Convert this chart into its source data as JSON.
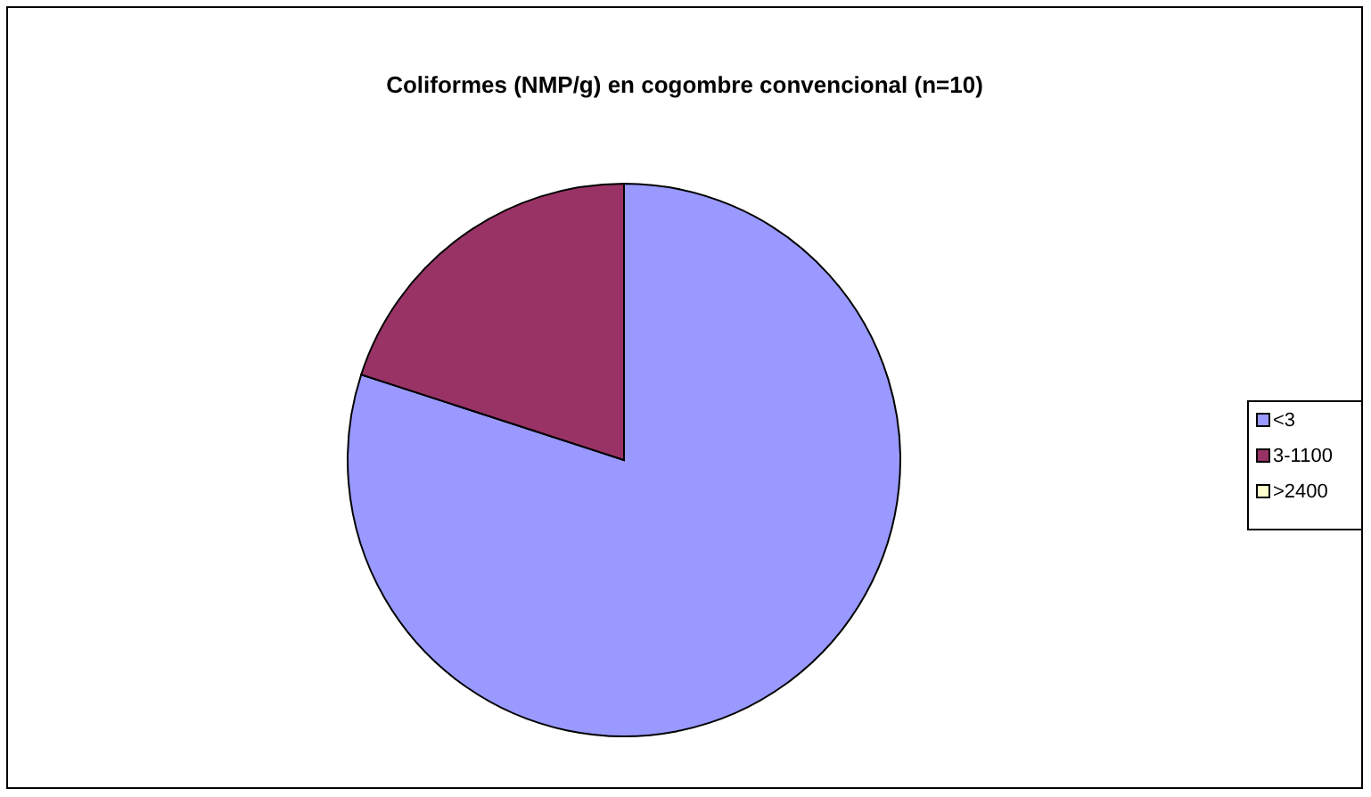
{
  "chart_data": {
    "type": "pie",
    "title": "Coliformes (NMP/g) en cogombre convencional (n=10)",
    "categories": [
      "<3",
      "3-1100",
      ">2400"
    ],
    "values": [
      80,
      20,
      0
    ],
    "colors": [
      "#9999ff",
      "#993366",
      "#ffffcc"
    ],
    "legend": "right"
  }
}
